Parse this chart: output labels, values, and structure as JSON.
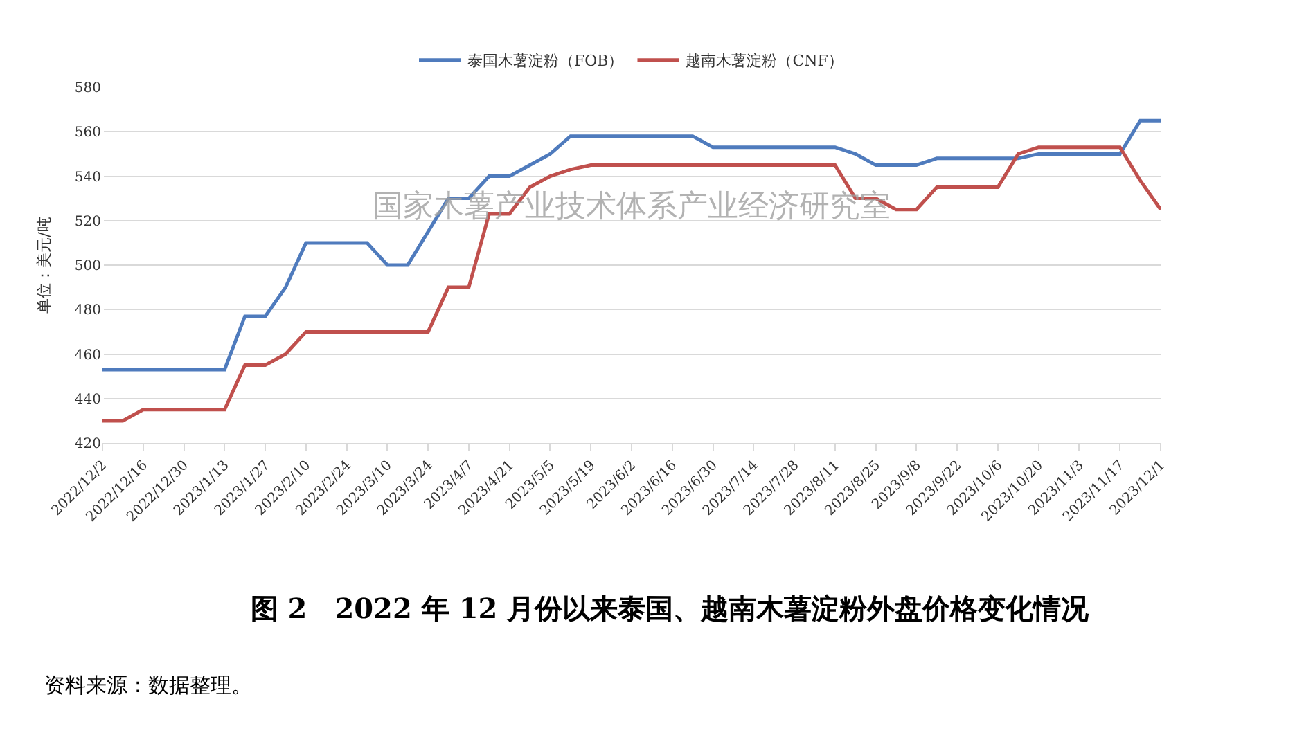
{
  "chart_data": {
    "type": "line",
    "title": "图 2　2022 年 12 月份以来泰国、越南木薯淀粉外盘价格变化情况",
    "ylabel": "单位：美元/吨",
    "categories": [
      "2022/12/2",
      null,
      "2022/12/16",
      null,
      "2022/12/30",
      null,
      "2023/1/13",
      null,
      "2023/1/27",
      null,
      "2023/2/10",
      null,
      "2023/2/24",
      null,
      "2023/3/10",
      null,
      "2023/3/24",
      null,
      "2023/4/7",
      null,
      "2023/4/21",
      null,
      "2023/5/5",
      null,
      "2023/5/19",
      null,
      "2023/6/2",
      null,
      "2023/6/16",
      null,
      "2023/6/30",
      null,
      "2023/7/14",
      null,
      "2023/7/28",
      null,
      "2023/8/11",
      null,
      "2023/8/25",
      null,
      "2023/9/8",
      null,
      "2023/9/22",
      null,
      "2023/10/6",
      null,
      "2023/10/20",
      null,
      "2023/11/3",
      null,
      "2023/11/17",
      null,
      "2023/12/1"
    ],
    "series": [
      {
        "name": "泰国木薯淀粉（FOB）",
        "color": "#4f7bbd",
        "values": [
          453,
          453,
          453,
          453,
          453,
          453,
          453,
          477,
          477,
          490,
          510,
          510,
          510,
          510,
          500,
          500,
          515,
          530,
          530,
          540,
          540,
          545,
          550,
          558,
          558,
          558,
          558,
          558,
          558,
          558,
          553,
          553,
          553,
          553,
          553,
          553,
          553,
          550,
          545,
          545,
          545,
          548,
          548,
          548,
          548,
          548,
          550,
          550,
          550,
          550,
          550,
          565,
          565
        ]
      },
      {
        "name": "越南木薯淀粉（CNF）",
        "color": "#c0504d",
        "values": [
          430,
          430,
          435,
          435,
          435,
          435,
          435,
          455,
          455,
          460,
          470,
          470,
          470,
          470,
          470,
          470,
          470,
          490,
          490,
          523,
          523,
          535,
          540,
          543,
          545,
          545,
          545,
          545,
          545,
          545,
          545,
          545,
          545,
          545,
          545,
          545,
          545,
          530,
          530,
          525,
          525,
          535,
          535,
          535,
          535,
          550,
          553,
          553,
          553,
          553,
          553,
          538,
          525
        ]
      }
    ],
    "ylim": [
      420,
      580
    ],
    "yticks": [
      420,
      440,
      460,
      480,
      500,
      520,
      540,
      560,
      580
    ],
    "grid": "y",
    "legend": "top",
    "marker": "none",
    "line_style": "solid",
    "annotations": [
      "国家木薯产业技术体系产业经济研究室",
      "资料来源：数据整理。"
    ]
  }
}
